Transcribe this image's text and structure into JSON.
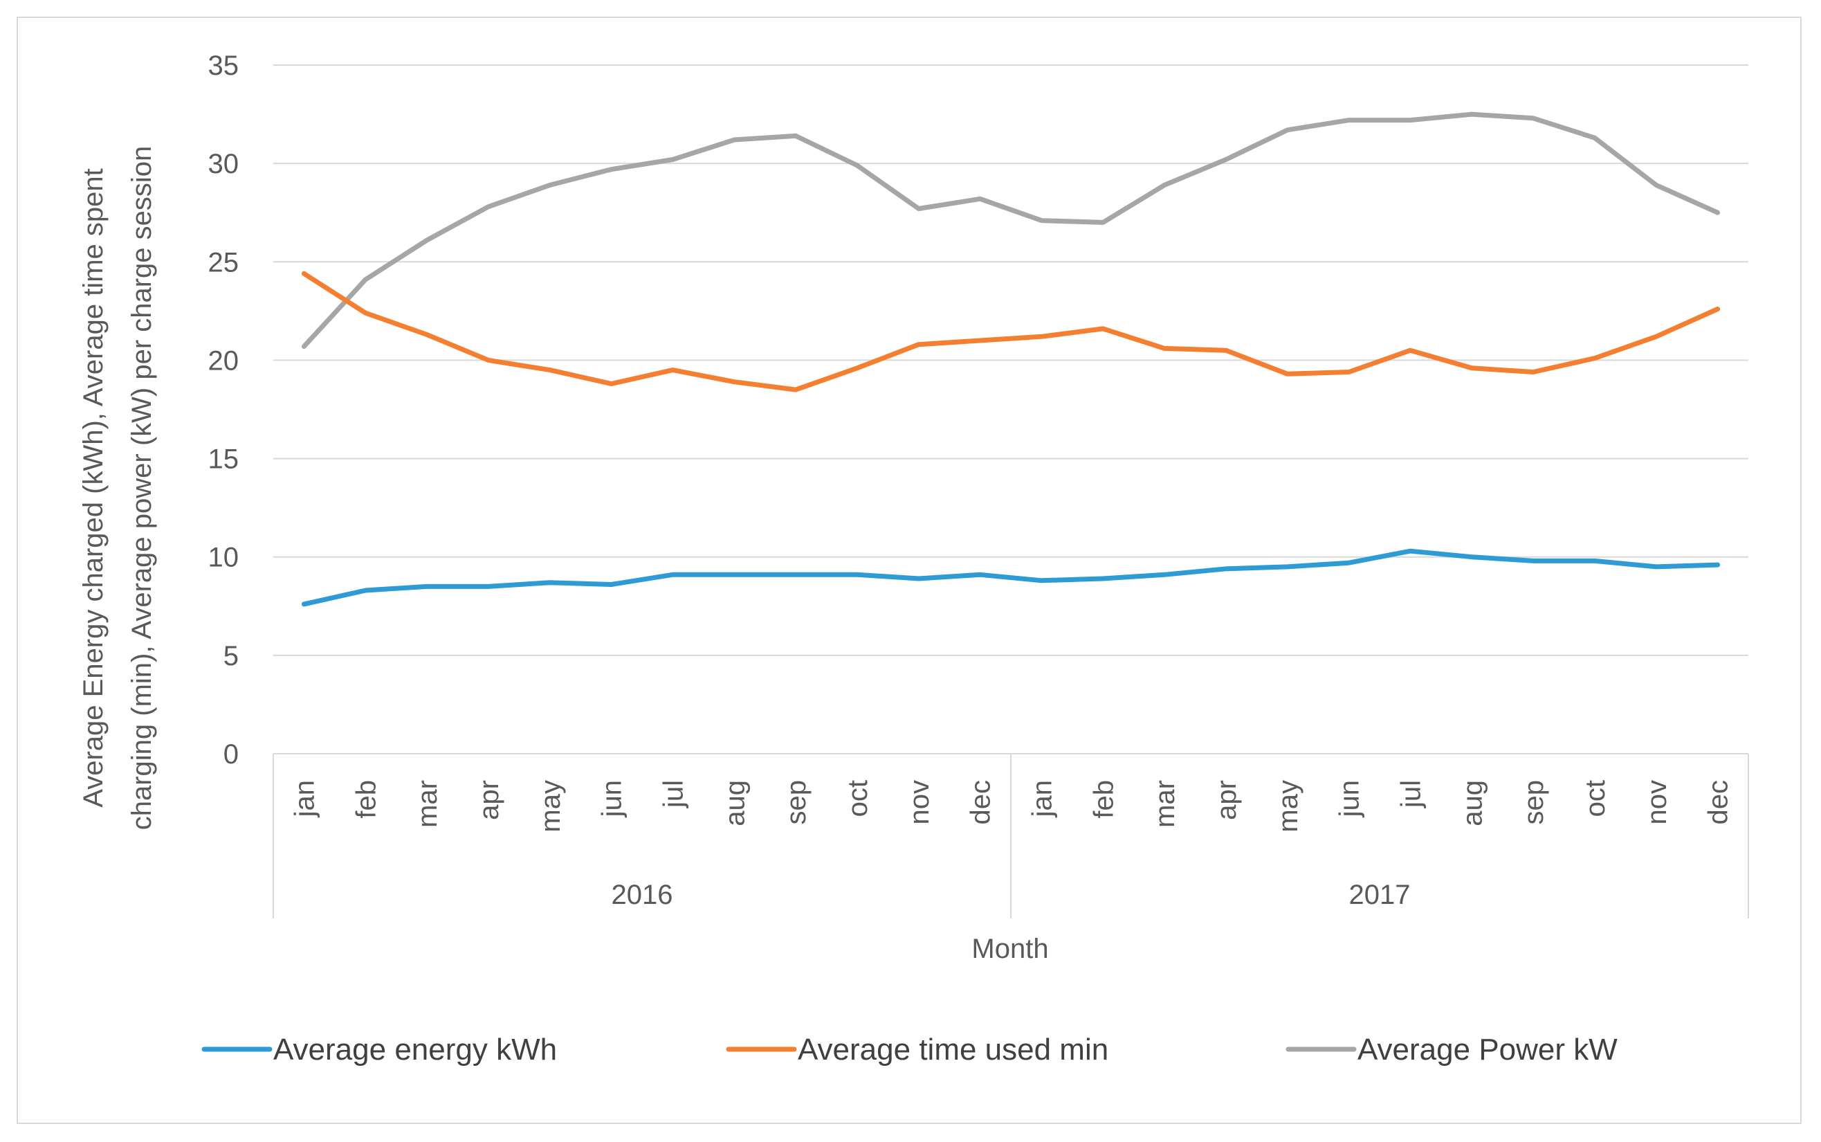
{
  "chart_data": {
    "type": "line",
    "title": "",
    "xlabel": "Month",
    "ylabel_lines": [
      "Average Energy charged (kWh), Average time spent",
      "charging (min), Average power (kW) per charge session"
    ],
    "ylim": [
      0,
      35
    ],
    "yticks": [
      0,
      5,
      10,
      15,
      20,
      25,
      30,
      35
    ],
    "grid": true,
    "legend_position": "bottom",
    "groups": [
      {
        "label": "2016",
        "months": [
          "jan",
          "feb",
          "mar",
          "apr",
          "may",
          "jun",
          "jul",
          "aug",
          "sep",
          "oct",
          "nov",
          "dec"
        ]
      },
      {
        "label": "2017",
        "months": [
          "jan",
          "feb",
          "mar",
          "apr",
          "may",
          "jun",
          "jul",
          "aug",
          "sep",
          "oct",
          "nov",
          "dec"
        ]
      }
    ],
    "series": [
      {
        "name": "Average energy kWh",
        "color": "#2e9bd6",
        "values": [
          7.6,
          8.3,
          8.5,
          8.5,
          8.7,
          8.6,
          9.1,
          9.1,
          9.1,
          9.1,
          8.9,
          9.1,
          8.8,
          8.9,
          9.1,
          9.4,
          9.5,
          9.7,
          10.3,
          10.0,
          9.8,
          9.8,
          9.5,
          9.6
        ]
      },
      {
        "name": "Average time used min",
        "color": "#f57f31",
        "values": [
          24.4,
          22.4,
          21.3,
          20.0,
          19.5,
          18.8,
          19.5,
          18.9,
          18.5,
          19.6,
          20.8,
          21.0,
          21.2,
          21.6,
          20.6,
          20.5,
          19.3,
          19.4,
          20.5,
          19.6,
          19.4,
          20.1,
          21.2,
          22.6
        ]
      },
      {
        "name": "Average Power kW",
        "color": "#a6a6a6",
        "values": [
          20.7,
          24.1,
          26.1,
          27.8,
          28.9,
          29.7,
          30.2,
          31.2,
          31.4,
          29.9,
          27.7,
          28.2,
          27.1,
          27.0,
          28.9,
          30.2,
          31.7,
          32.2,
          32.2,
          32.5,
          32.3,
          31.3,
          28.9,
          27.5
        ]
      }
    ]
  }
}
